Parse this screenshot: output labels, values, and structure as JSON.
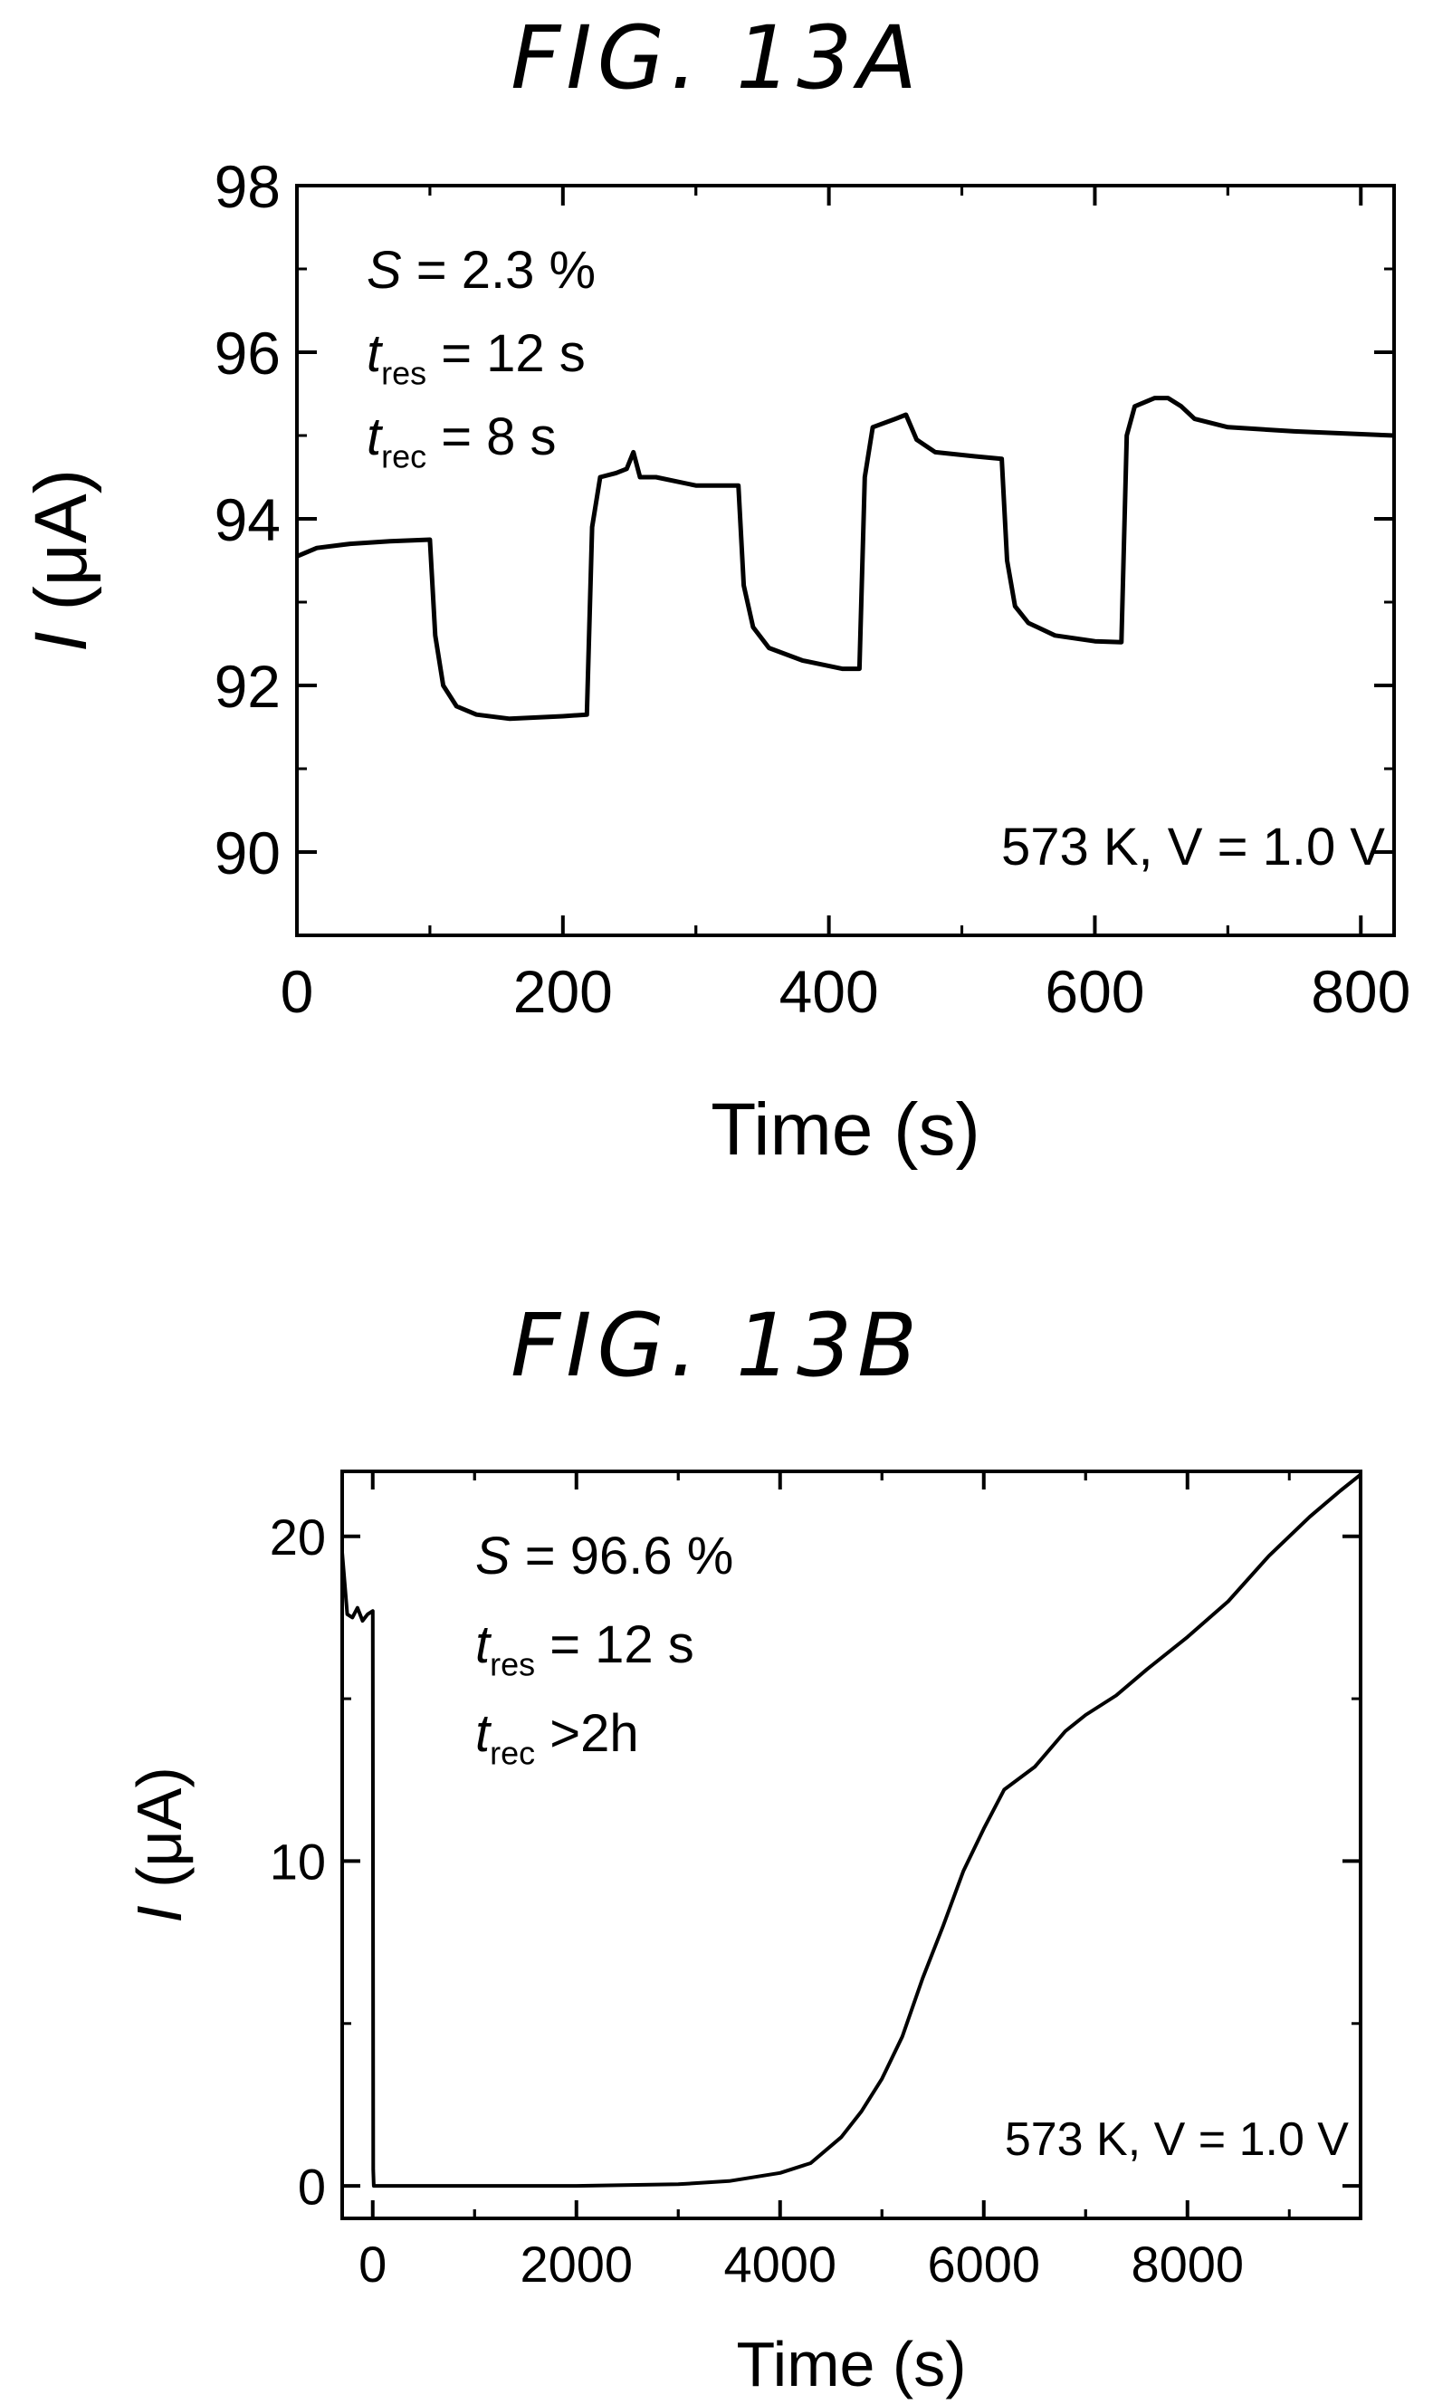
{
  "figures": [
    {
      "title": "FIG. 13A"
    },
    {
      "title": "FIG. 13B"
    }
  ],
  "chart_data": [
    {
      "type": "line",
      "xlabel": "Time (s)",
      "ylabel_italic": "I",
      "ylabel_rest": " (μA)",
      "xlim": [
        0,
        825
      ],
      "ylim": [
        89,
        98
      ],
      "xticks": [
        0,
        200,
        400,
        600,
        800
      ],
      "yticks": [
        90,
        92,
        94,
        96,
        98
      ],
      "grid": false,
      "annotation_lines": [
        {
          "sym": "S",
          "sub": "",
          "rest": " = 2.3 %"
        },
        {
          "sym": "t",
          "sub": "res",
          "rest": " = 12 s"
        },
        {
          "sym": "t",
          "sub": "rec",
          "rest": " = 8 s"
        }
      ],
      "condition_text": "573 K, V = 1.0 V",
      "series": [
        {
          "x": [
            0,
            15,
            40,
            70,
            100,
            104,
            110,
            120,
            135,
            160,
            200,
            218,
            222,
            228,
            240,
            248,
            253,
            258,
            270,
            300,
            332,
            336,
            343,
            355,
            380,
            410,
            423,
            427,
            433,
            450,
            458,
            466,
            480,
            510,
            530,
            534,
            540,
            550,
            570,
            600,
            620,
            624,
            630,
            645,
            655,
            665,
            675,
            700,
            750,
            825
          ],
          "y": [
            93.55,
            93.65,
            93.7,
            93.73,
            93.75,
            92.6,
            92.0,
            91.75,
            91.65,
            91.6,
            91.63,
            91.65,
            93.9,
            94.5,
            94.55,
            94.6,
            94.8,
            94.5,
            94.5,
            94.4,
            94.4,
            93.2,
            92.7,
            92.45,
            92.3,
            92.2,
            92.2,
            94.5,
            95.1,
            95.2,
            95.25,
            94.95,
            94.8,
            94.75,
            94.72,
            93.5,
            92.95,
            92.75,
            92.6,
            92.53,
            92.52,
            95.0,
            95.35,
            95.45,
            95.45,
            95.35,
            95.2,
            95.1,
            95.05,
            95.0
          ]
        }
      ]
    },
    {
      "type": "line",
      "xlabel": "Time (s)",
      "ylabel_italic": "I",
      "ylabel_rest": " (μA)",
      "xlim": [
        -300,
        9700
      ],
      "ylim": [
        -1,
        22
      ],
      "xticks": [
        0,
        2000,
        4000,
        6000,
        8000
      ],
      "yticks": [
        0,
        10,
        20
      ],
      "grid": false,
      "annotation_lines": [
        {
          "sym": "S",
          "sub": "",
          "rest": " = 96.6 %"
        },
        {
          "sym": "t",
          "sub": "res",
          "rest": " = 12 s"
        },
        {
          "sym": "t",
          "sub": "rec",
          "rest": " >2h"
        }
      ],
      "condition_text": "573 K, V = 1.0 V",
      "series": [
        {
          "x": [
            -300,
            -250,
            -200,
            -150,
            -100,
            -50,
            0,
            5,
            10,
            500,
            1000,
            2000,
            3000,
            3500,
            4000,
            4300,
            4600,
            4800,
            5000,
            5200,
            5400,
            5600,
            5800,
            6000,
            6200,
            6500,
            6800,
            7000,
            7300,
            7600,
            8000,
            8400,
            8800,
            9200,
            9500,
            9700
          ],
          "y": [
            19.5,
            17.6,
            17.5,
            17.8,
            17.4,
            17.6,
            17.7,
            0.5,
            0.0,
            0.0,
            0.0,
            0.0,
            0.05,
            0.15,
            0.4,
            0.7,
            1.5,
            2.3,
            3.3,
            4.6,
            6.4,
            8.0,
            9.7,
            11.0,
            12.2,
            12.9,
            14.0,
            14.5,
            15.1,
            15.9,
            16.9,
            18.0,
            19.4,
            20.6,
            21.4,
            21.9
          ]
        }
      ]
    }
  ]
}
